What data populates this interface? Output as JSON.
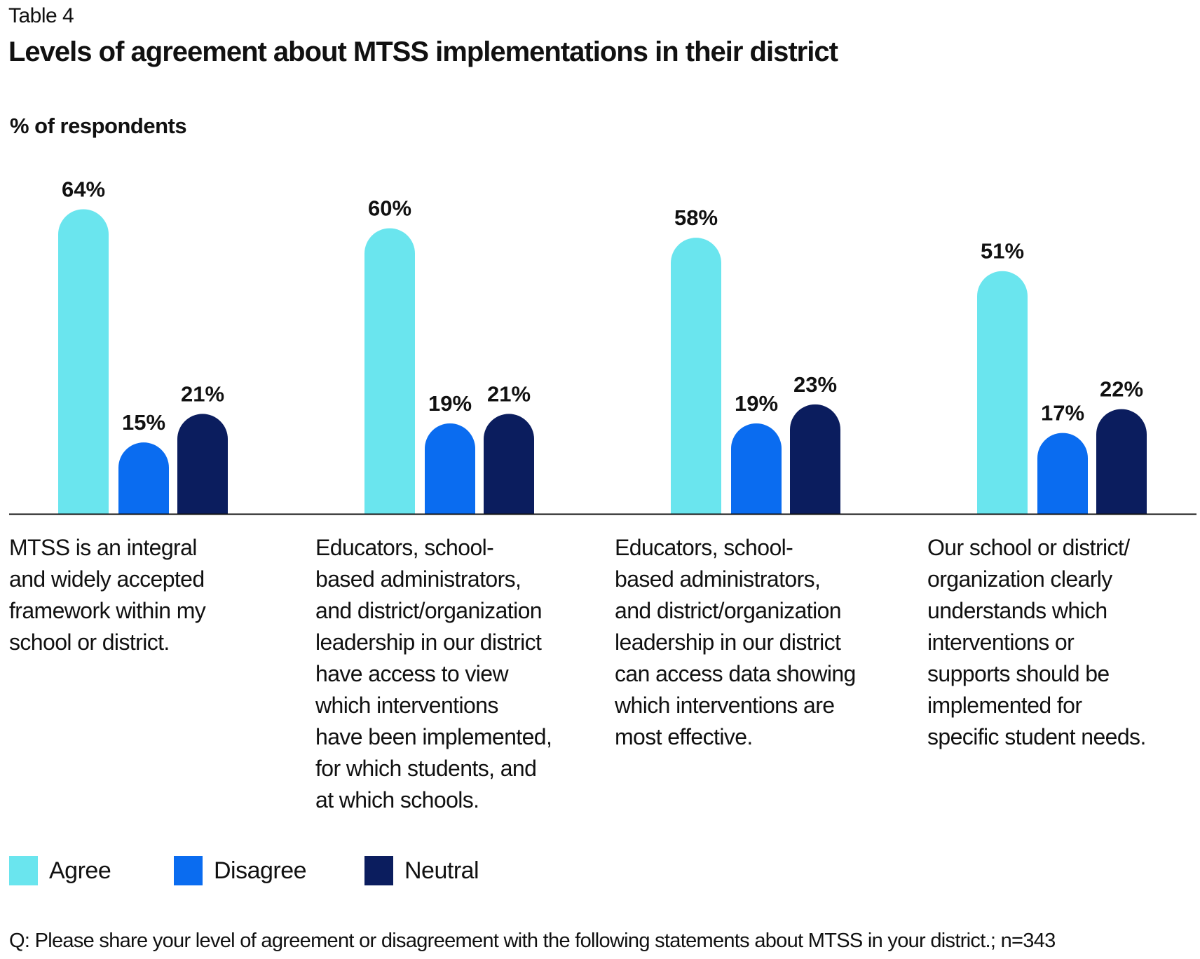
{
  "table_label": "Table 4",
  "chart_data": {
    "type": "bar",
    "title": "Levels of agreement about MTSS implementations in their district",
    "ylabel": "% of respondents",
    "xlabel": "",
    "ylim": [
      0,
      100
    ],
    "grid": false,
    "legend_placement": "bottom-left",
    "categories": [
      [
        "MTSS is an integral",
        "and widely accepted",
        "framework within my",
        "school or district."
      ],
      [
        "Educators, school-",
        "based administrators,",
        "and district/organization",
        "leadership in our district",
        "have access to view",
        "which interventions",
        "have been implemented,",
        "for which students, and",
        "at which schools."
      ],
      [
        "Educators, school-",
        "based administrators,",
        "and district/organization",
        "leadership in our district",
        "can access data showing",
        "which interventions are",
        "most effective."
      ],
      [
        "Our school or district/",
        "organization clearly",
        "understands which",
        "interventions or",
        "supports should be",
        "implemented for",
        "specific student needs."
      ]
    ],
    "series": [
      {
        "name": "Agree",
        "color": "#6ae5ee",
        "values": [
          64,
          60,
          58,
          51
        ],
        "labels": [
          "64%",
          "60%",
          "58%",
          "51%"
        ]
      },
      {
        "name": "Disagree",
        "color": "#0a6cf0",
        "values": [
          15,
          19,
          19,
          17
        ],
        "labels": [
          "15%",
          "19%",
          "19%",
          "17%"
        ]
      },
      {
        "name": "Neutral",
        "color": "#0b1d5e",
        "values": [
          21,
          21,
          23,
          22
        ],
        "labels": [
          "21%",
          "21%",
          "23%",
          "22%"
        ]
      }
    ]
  },
  "footer": "Q: Please share your level of agreement or disagreement with the following statements about MTSS in your district.; n=343"
}
